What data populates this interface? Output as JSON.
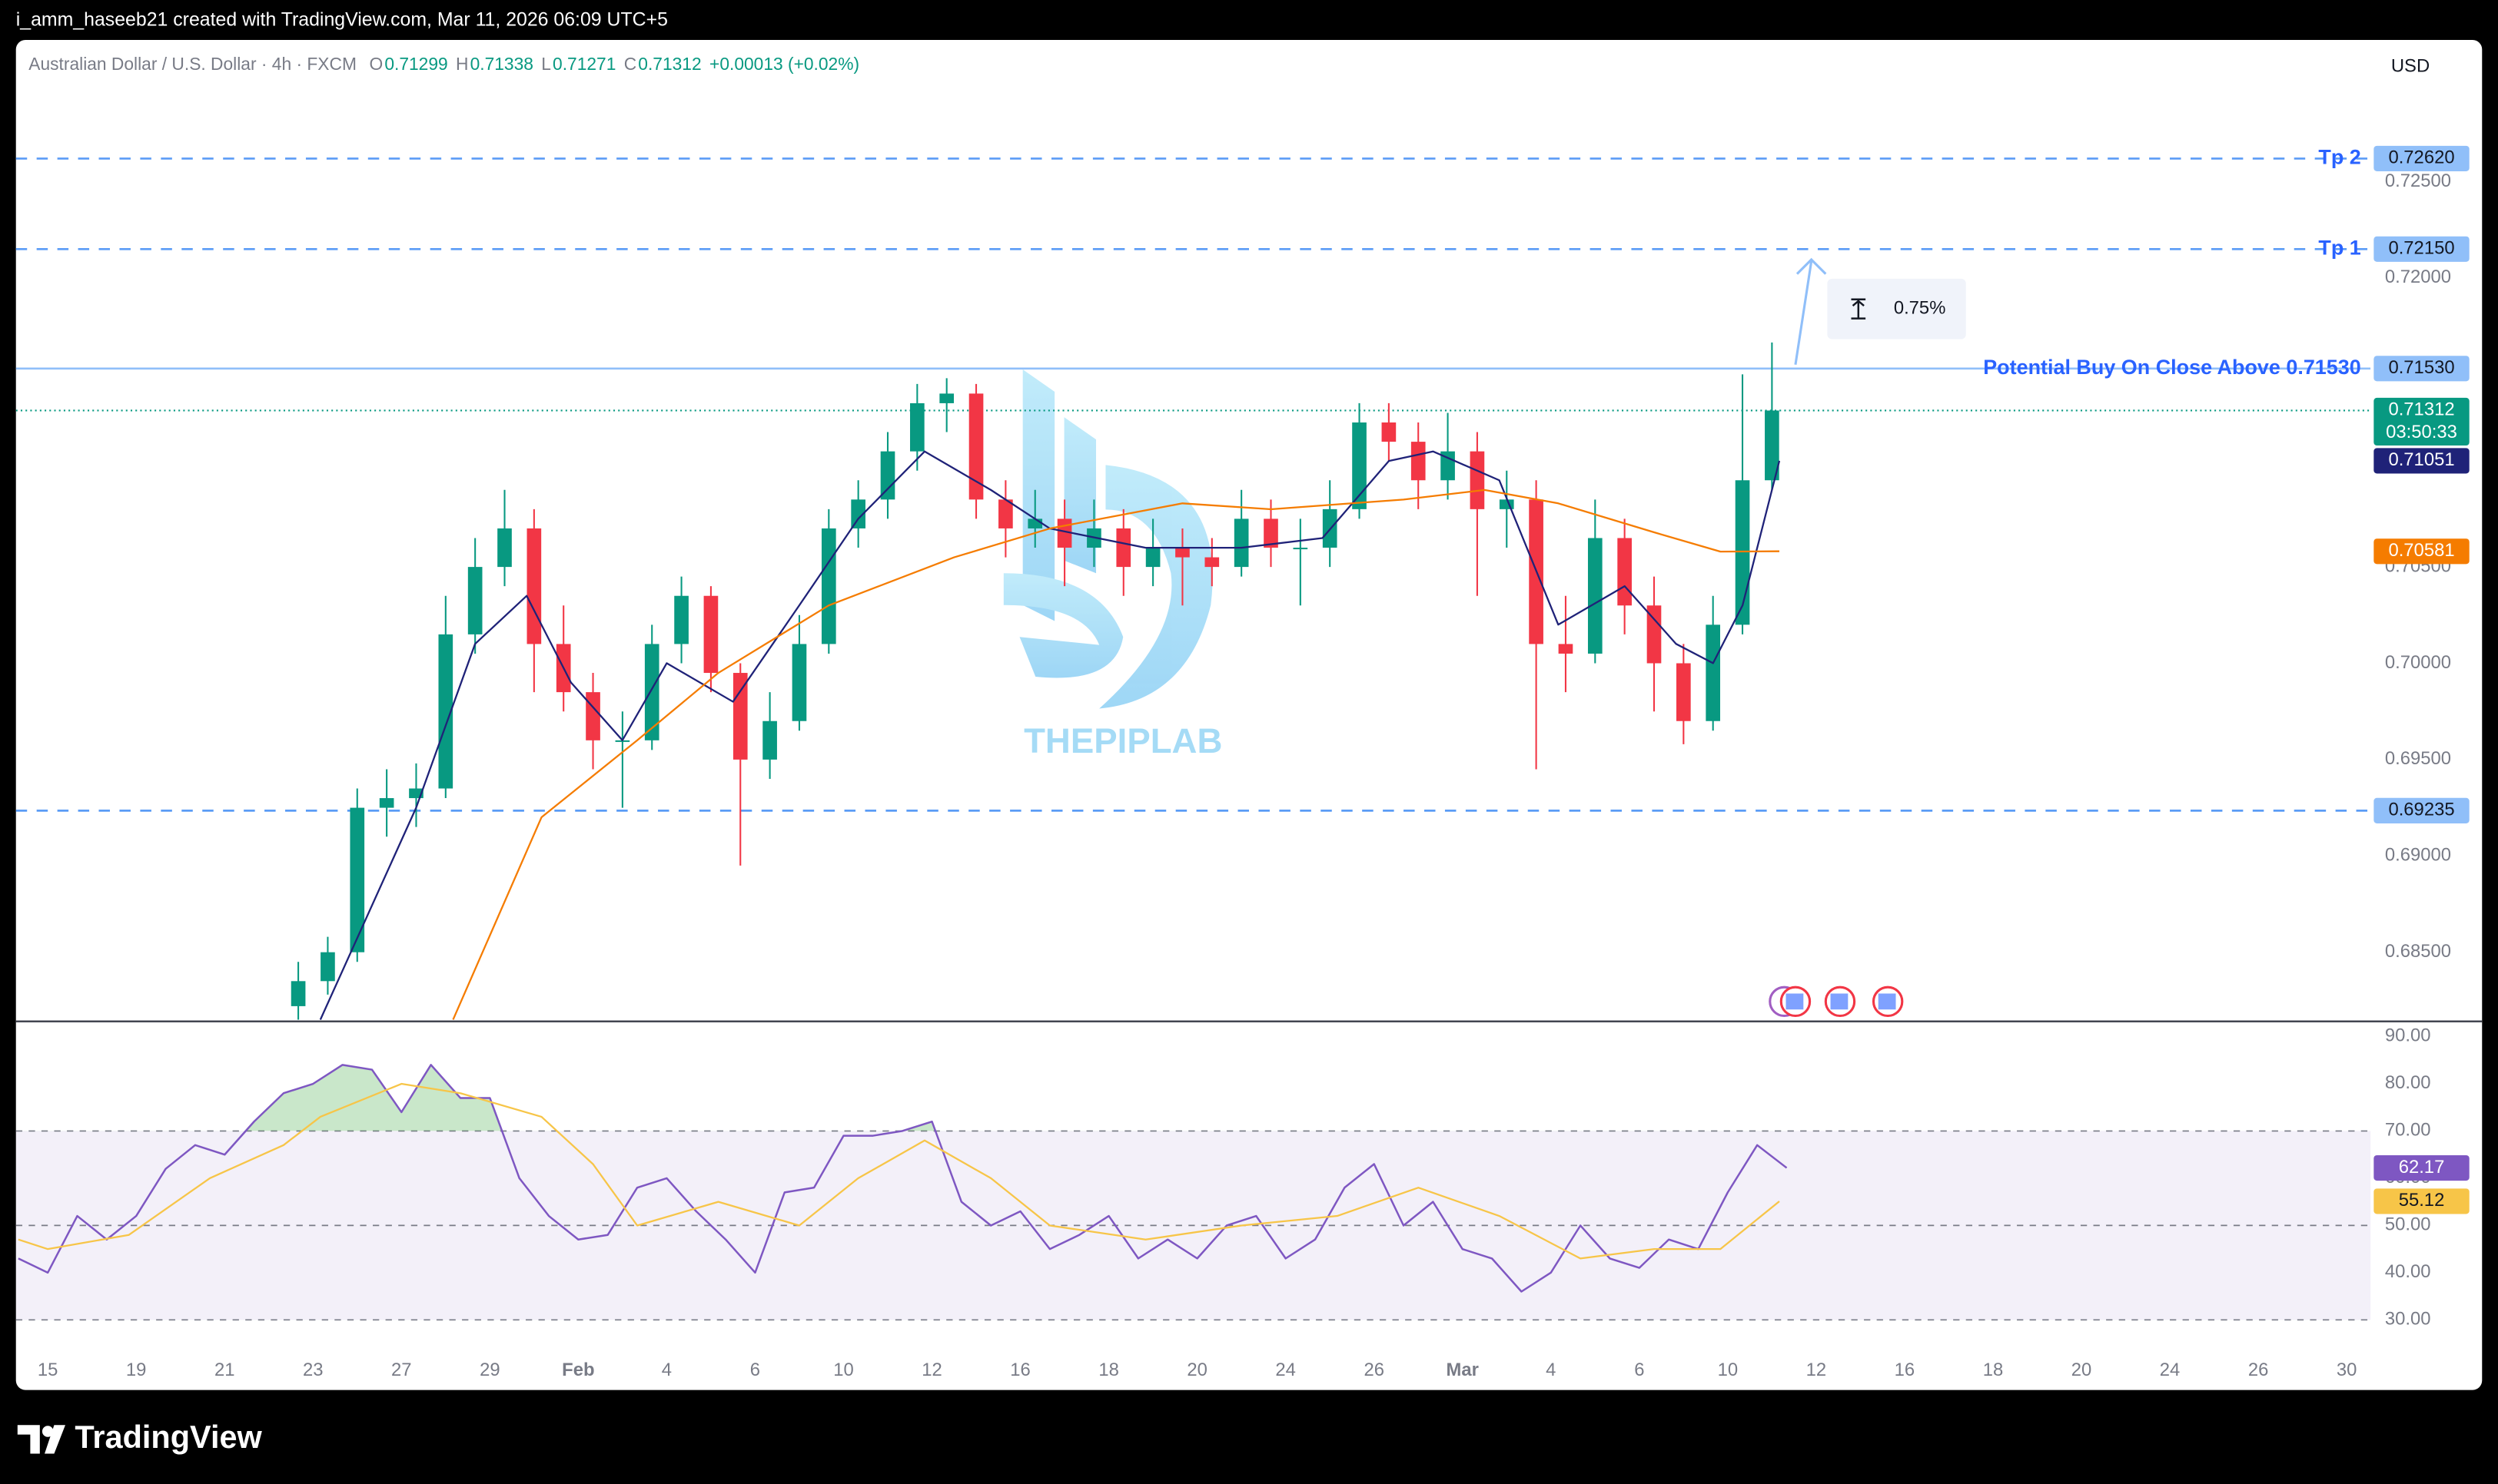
{
  "header": {
    "credit": "i_amm_haseeb21 created with TradingView.com, Mar 11, 2026 06:09 UTC+5"
  },
  "chart_data": [
    {
      "type": "candlestick",
      "symbol": "Australian Dollar / U.S. Dollar · 4h · FXCM",
      "ohlc": [
        {
          "key": "O",
          "value": 0.71299
        },
        {
          "key": "H",
          "value": 0.71338
        },
        {
          "key": "L",
          "value": 0.71271
        },
        {
          "key": "C",
          "value": 0.71312
        }
      ],
      "change": "+0.00013 (+0.02%)",
      "currency": "USD",
      "watermark": "THEPIPLAB",
      "up_color": "#089981",
      "down_color": "#f23645",
      "xlim": [
        -4.32,
        315.24
      ],
      "xticks": [
        {
          "value": 0,
          "label": "15"
        },
        {
          "value": 12,
          "label": "19"
        },
        {
          "value": 24,
          "label": "21"
        },
        {
          "value": 36,
          "label": "23"
        },
        {
          "value": 48,
          "label": "27"
        },
        {
          "value": 60,
          "label": "29"
        },
        {
          "value": 72,
          "label": "Feb"
        },
        {
          "value": 84,
          "label": "4"
        },
        {
          "value": 96,
          "label": "6"
        },
        {
          "value": 108,
          "label": "10"
        },
        {
          "value": 120,
          "label": "12"
        },
        {
          "value": 132,
          "label": "16"
        },
        {
          "value": 144,
          "label": "18"
        },
        {
          "value": 156,
          "label": "20"
        },
        {
          "value": 168,
          "label": "24"
        },
        {
          "value": 180,
          "label": "26"
        },
        {
          "value": 192,
          "label": "Mar"
        },
        {
          "value": 204,
          "label": "4"
        },
        {
          "value": 216,
          "label": "6"
        },
        {
          "value": 228,
          "label": "10"
        },
        {
          "value": 240,
          "label": "12"
        },
        {
          "value": 252,
          "label": "16"
        },
        {
          "value": 264,
          "label": "18"
        },
        {
          "value": 276,
          "label": "20"
        },
        {
          "value": 288,
          "label": "24"
        },
        {
          "value": 300,
          "label": "26"
        },
        {
          "value": 312,
          "label": "30"
        }
      ],
      "ylim": [
        0.68145,
        0.73236
      ],
      "yticks": [
        {
          "value": 0.725,
          "label": "0.72500"
        },
        {
          "value": 0.72,
          "label": "0.72000"
        },
        {
          "value": 0.705,
          "label": "0.70500"
        },
        {
          "value": 0.7,
          "label": "0.70000"
        },
        {
          "value": 0.695,
          "label": "0.69500"
        },
        {
          "value": 0.69,
          "label": "0.69000"
        },
        {
          "value": 0.685,
          "label": "0.68500"
        }
      ],
      "x": [
        34,
        38,
        42,
        46,
        50,
        54,
        58,
        62,
        66,
        70,
        74,
        78,
        82,
        86,
        90,
        94,
        98,
        102,
        106,
        110,
        114,
        118,
        122,
        126,
        130,
        134,
        138,
        142,
        146,
        150,
        154,
        158,
        162,
        166,
        170,
        174,
        178,
        182,
        186,
        190,
        194,
        198,
        202,
        206,
        210,
        214,
        218,
        222,
        226,
        230,
        234
      ],
      "candles": [
        [
          0.6822,
          0.6845,
          0.6815,
          0.6835
        ],
        [
          0.6835,
          0.6858,
          0.6828,
          0.685
        ],
        [
          0.685,
          0.6935,
          0.6845,
          0.6925
        ],
        [
          0.6925,
          0.6945,
          0.691,
          0.693
        ],
        [
          0.693,
          0.6948,
          0.6915,
          0.6935
        ],
        [
          0.6935,
          0.7035,
          0.693,
          0.7015
        ],
        [
          0.7015,
          0.7065,
          0.7005,
          0.705
        ],
        [
          0.705,
          0.709,
          0.704,
          0.707
        ],
        [
          0.707,
          0.708,
          0.6985,
          0.701
        ],
        [
          0.701,
          0.703,
          0.6975,
          0.6985
        ],
        [
          0.6985,
          0.6995,
          0.6945,
          0.696
        ],
        [
          0.696,
          0.6975,
          0.6925,
          0.696
        ],
        [
          0.696,
          0.702,
          0.6955,
          0.701
        ],
        [
          0.701,
          0.7045,
          0.7,
          0.7035
        ],
        [
          0.7035,
          0.704,
          0.6985,
          0.6995
        ],
        [
          0.6995,
          0.7,
          0.6895,
          0.695
        ],
        [
          0.695,
          0.6985,
          0.694,
          0.697
        ],
        [
          0.697,
          0.7025,
          0.6965,
          0.701
        ],
        [
          0.701,
          0.708,
          0.7005,
          0.707
        ],
        [
          0.707,
          0.7095,
          0.706,
          0.7085
        ],
        [
          0.7085,
          0.712,
          0.7075,
          0.711
        ],
        [
          0.711,
          0.7145,
          0.71,
          0.7135
        ],
        [
          0.7135,
          0.7148,
          0.712,
          0.714
        ],
        [
          0.714,
          0.7145,
          0.7075,
          0.7085
        ],
        [
          0.7085,
          0.7095,
          0.7055,
          0.707
        ],
        [
          0.707,
          0.709,
          0.706,
          0.7075
        ],
        [
          0.7075,
          0.7085,
          0.704,
          0.706
        ],
        [
          0.706,
          0.7085,
          0.705,
          0.707
        ],
        [
          0.707,
          0.708,
          0.7035,
          0.705
        ],
        [
          0.705,
          0.7075,
          0.704,
          0.706
        ],
        [
          0.706,
          0.707,
          0.703,
          0.7055
        ],
        [
          0.7055,
          0.7065,
          0.704,
          0.705
        ],
        [
          0.705,
          0.709,
          0.7045,
          0.7075
        ],
        [
          0.7075,
          0.7085,
          0.705,
          0.706
        ],
        [
          0.706,
          0.7075,
          0.703,
          0.706
        ],
        [
          0.706,
          0.7095,
          0.705,
          0.708
        ],
        [
          0.708,
          0.7135,
          0.7075,
          0.7125
        ],
        [
          0.7125,
          0.7135,
          0.7105,
          0.7115
        ],
        [
          0.7115,
          0.7125,
          0.708,
          0.7095
        ],
        [
          0.7095,
          0.713,
          0.7085,
          0.711
        ],
        [
          0.711,
          0.712,
          0.7035,
          0.708
        ],
        [
          0.708,
          0.71,
          0.706,
          0.7085
        ],
        [
          0.7085,
          0.7095,
          0.6945,
          0.701
        ],
        [
          0.701,
          0.7035,
          0.6985,
          0.7005
        ],
        [
          0.7005,
          0.7085,
          0.7,
          0.7065
        ],
        [
          0.7065,
          0.7075,
          0.7015,
          0.703
        ],
        [
          0.703,
          0.7045,
          0.6975,
          0.7
        ],
        [
          0.7,
          0.701,
          0.6958,
          0.697
        ],
        [
          0.697,
          0.7035,
          0.6965,
          0.702
        ],
        [
          0.702,
          0.715,
          0.7015,
          0.7095
        ],
        [
          0.7095,
          0.71665,
          0.709,
          0.71312
        ]
      ],
      "ma_series": [
        {
          "color": "#1f2278",
          "x": [
            37,
            50,
            58,
            65,
            71,
            78,
            84,
            93,
            102,
            110,
            119,
            128,
            136,
            149,
            162,
            173,
            182,
            188,
            197,
            205,
            214,
            221,
            226,
            230,
            235
          ],
          "values": [
            0.6815,
            0.6925,
            0.701,
            0.7035,
            0.699,
            0.696,
            0.7,
            0.698,
            0.703,
            0.7075,
            0.711,
            0.709,
            0.707,
            0.706,
            0.706,
            0.7065,
            0.7105,
            0.711,
            0.7095,
            0.702,
            0.704,
            0.701,
            0.7,
            0.703,
            0.71051
          ],
          "last_label": "0.71051"
        },
        {
          "color": "#f57c00",
          "x": [
            55,
            67,
            80,
            91,
            106,
            123,
            136,
            154,
            166,
            184,
            195,
            205,
            218,
            227,
            235
          ],
          "values": [
            0.6815,
            0.692,
            0.696,
            0.6995,
            0.703,
            0.7055,
            0.707,
            0.7083,
            0.708,
            0.7085,
            0.709,
            0.7083,
            0.7068,
            0.7058,
            0.70581
          ],
          "last_label": "0.70581"
        }
      ],
      "levels": [
        {
          "value": 0.7262,
          "label": "0.72620",
          "text": "Tp 2",
          "style": "dashed"
        },
        {
          "value": 0.7215,
          "label": "0.72150",
          "text": "Tp 1",
          "style": "dashed"
        },
        {
          "value": 0.7153,
          "label": "0.71530",
          "text": "Potential Buy On Close Above 0.71530",
          "style": "solid"
        },
        {
          "value": 0.69235,
          "label": "0.69235",
          "style": "dashed"
        }
      ],
      "last_price": {
        "value": 0.71312,
        "label": "0.71312",
        "countdown": "03:50:33"
      },
      "measure": {
        "value": 0.75,
        "label": "0.75%"
      }
    },
    {
      "type": "line",
      "ylim": [
        24.6,
        93.03
      ],
      "yticks": [
        {
          "value": 90,
          "label": "90.00"
        },
        {
          "value": 80,
          "label": "80.00"
        },
        {
          "value": 70,
          "label": "70.00"
        },
        {
          "value": 60,
          "label": "60.00"
        },
        {
          "value": 50,
          "label": "50.00"
        },
        {
          "value": 40,
          "label": "40.00"
        },
        {
          "value": 30,
          "label": "30.00"
        }
      ],
      "band": [
        30,
        70
      ],
      "hlines": [
        70,
        50,
        30
      ],
      "series": [
        {
          "color": "#7e57c2",
          "x": [
            -4,
            0,
            4,
            8,
            12,
            16,
            20,
            24,
            28,
            32,
            36,
            40,
            44,
            48,
            52,
            56,
            60,
            64,
            68,
            72,
            76,
            80,
            84,
            88,
            92,
            96,
            100,
            104,
            108,
            112,
            116,
            120,
            124,
            128,
            132,
            136,
            140,
            144,
            148,
            152,
            156,
            160,
            164,
            168,
            172,
            176,
            180,
            184,
            188,
            192,
            196,
            200,
            204,
            208,
            212,
            216,
            220,
            224,
            228,
            232,
            236
          ],
          "values": [
            43,
            40,
            52,
            47,
            52,
            62,
            67,
            65,
            72,
            78,
            80,
            84,
            83,
            74,
            84,
            77,
            77,
            60,
            52,
            47,
            48,
            58,
            60,
            53,
            47,
            40,
            57,
            58,
            69,
            69,
            70,
            72,
            55,
            50,
            53,
            45,
            48,
            52,
            43,
            47,
            43,
            50,
            52,
            43,
            47,
            58,
            63,
            50,
            55,
            45,
            43,
            36,
            40,
            50,
            43,
            41,
            47,
            45,
            57,
            67,
            62.17
          ],
          "last_label": "62.17"
        },
        {
          "color": "#f7c548",
          "x": [
            -4,
            0,
            11,
            22,
            32,
            37,
            48,
            56,
            67,
            74,
            80,
            91,
            102,
            110,
            119,
            128,
            136,
            149,
            162,
            175,
            186,
            197,
            208,
            218,
            227,
            235
          ],
          "values": [
            47,
            45,
            48,
            60,
            67,
            73,
            80,
            78,
            73,
            63,
            50,
            55,
            50,
            60,
            68,
            60,
            50,
            47,
            50,
            52,
            58,
            52,
            43,
            45,
            45,
            55.12
          ],
          "last_label": "55.12"
        }
      ]
    }
  ],
  "footer": {
    "logo": "TradingView"
  }
}
